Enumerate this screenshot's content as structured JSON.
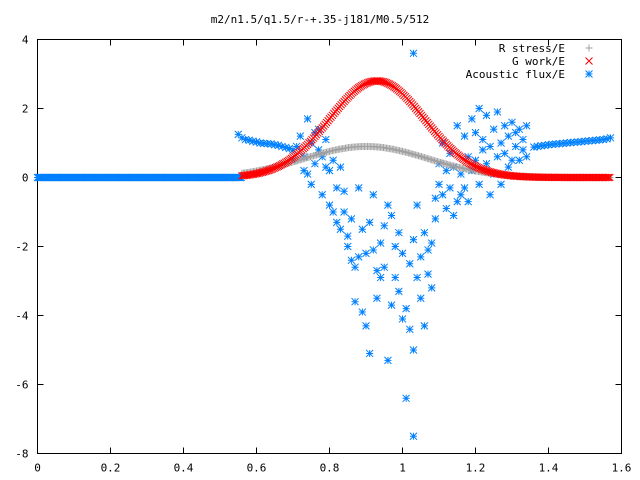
{
  "chart_data": {
    "type": "scatter",
    "title": "m2/n1.5/q1.5/r-+.35-j181/M0.5/512",
    "xlim": [
      0,
      1.6
    ],
    "ylim": [
      -8,
      4
    ],
    "xticks": [
      0,
      0.2,
      0.4,
      0.6,
      0.8,
      1,
      1.2,
      1.4,
      1.6
    ],
    "xtick_labels": [
      "0",
      "0.2",
      "0.4",
      "0.6",
      "0.8",
      "1",
      "1.2",
      "1.4",
      "1.6"
    ],
    "yticks": [
      -8,
      -6,
      -4,
      -2,
      0,
      2,
      4
    ],
    "ytick_labels": [
      "-8",
      "-6",
      "-4",
      "-2",
      "0",
      "2",
      "4"
    ],
    "grid": false,
    "legend_position": "top-right",
    "series": [
      {
        "name": "R stress/E",
        "marker": "plus",
        "color": "#a0a0a0",
        "x_range": [
          0.56,
          1.57
        ],
        "peak_x": 0.9,
        "peak_y": 0.9,
        "width": 0.17
      },
      {
        "name": "G work/E",
        "marker": "cross",
        "color": "#ff0000",
        "x_range": [
          0.56,
          1.57
        ],
        "peak_x": 0.93,
        "peak_y": 2.8,
        "width": 0.13
      },
      {
        "name": "Acoustic flux/E",
        "marker": "star",
        "color": "#0080ff",
        "flat_segment": {
          "x_range": [
            0,
            0.56
          ],
          "y": 0
        },
        "left_branch": [
          [
            0.55,
            1.25
          ],
          [
            0.56,
            1.15
          ],
          [
            0.57,
            1.1
          ],
          [
            0.58,
            1.08
          ],
          [
            0.59,
            1.05
          ],
          [
            0.6,
            1.03
          ],
          [
            0.61,
            1.0
          ],
          [
            0.62,
            0.99
          ],
          [
            0.63,
            0.98
          ],
          [
            0.64,
            0.97
          ],
          [
            0.65,
            0.95
          ],
          [
            0.66,
            0.93
          ],
          [
            0.67,
            0.9
          ],
          [
            0.68,
            0.87
          ],
          [
            0.69,
            0.84
          ],
          [
            0.7,
            0.8
          ]
        ],
        "right_branch": [
          [
            1.36,
            0.88
          ],
          [
            1.37,
            0.9
          ],
          [
            1.38,
            0.92
          ],
          [
            1.39,
            0.93
          ],
          [
            1.4,
            0.95
          ],
          [
            1.41,
            0.96
          ],
          [
            1.42,
            0.97
          ],
          [
            1.43,
            0.98
          ],
          [
            1.44,
            0.99
          ],
          [
            1.45,
            1.0
          ],
          [
            1.46,
            1.01
          ],
          [
            1.47,
            1.02
          ],
          [
            1.48,
            1.03
          ],
          [
            1.49,
            1.04
          ],
          [
            1.5,
            1.05
          ],
          [
            1.51,
            1.06
          ],
          [
            1.52,
            1.07
          ],
          [
            1.53,
            1.08
          ],
          [
            1.54,
            1.09
          ],
          [
            1.55,
            1.1
          ],
          [
            1.56,
            1.12
          ],
          [
            1.57,
            1.15
          ]
        ],
        "scatter": [
          [
            0.7,
            0.5
          ],
          [
            0.71,
            0.9
          ],
          [
            0.72,
            1.2
          ],
          [
            0.73,
            0.6
          ],
          [
            0.73,
            0.2
          ],
          [
            0.74,
            1.7
          ],
          [
            0.74,
            0.1
          ],
          [
            0.75,
            -0.2
          ],
          [
            0.75,
            1.0
          ],
          [
            0.76,
            0.4
          ],
          [
            0.76,
            1.3
          ],
          [
            0.77,
            0.8
          ],
          [
            0.77,
            1.4
          ],
          [
            0.78,
            0.6
          ],
          [
            0.78,
            -0.5
          ],
          [
            0.79,
            0.3
          ],
          [
            0.79,
            1.1
          ],
          [
            0.8,
            0.2
          ],
          [
            0.8,
            -0.8
          ],
          [
            0.81,
            -1.0
          ],
          [
            0.81,
            0.5
          ],
          [
            0.82,
            -0.3
          ],
          [
            0.82,
            -1.3
          ],
          [
            0.83,
            0.3
          ],
          [
            0.83,
            -1.5
          ],
          [
            0.84,
            -1.0
          ],
          [
            0.84,
            -0.4
          ],
          [
            0.85,
            -1.7
          ],
          [
            0.85,
            -2.0
          ],
          [
            0.86,
            -2.4
          ],
          [
            0.86,
            -1.2
          ],
          [
            0.87,
            -2.6
          ],
          [
            0.87,
            -3.6
          ],
          [
            0.88,
            -2.3
          ],
          [
            0.88,
            -0.3
          ],
          [
            0.89,
            -1.5
          ],
          [
            0.89,
            -3.9
          ],
          [
            0.9,
            -2.2
          ],
          [
            0.9,
            -4.3
          ],
          [
            0.91,
            -1.3
          ],
          [
            0.91,
            -5.1
          ],
          [
            0.92,
            -2.1
          ],
          [
            0.92,
            -0.5
          ],
          [
            0.93,
            -2.7
          ],
          [
            0.93,
            -3.5
          ],
          [
            0.94,
            -1.9
          ],
          [
            0.94,
            -2.9
          ],
          [
            0.95,
            -1.4
          ],
          [
            0.95,
            -2.6
          ],
          [
            0.96,
            -0.8
          ],
          [
            0.96,
            -5.3
          ],
          [
            0.97,
            -1.1
          ],
          [
            0.97,
            -3.7
          ],
          [
            0.98,
            -2.0
          ],
          [
            0.98,
            -2.9
          ],
          [
            0.99,
            -1.6
          ],
          [
            0.99,
            -3.3
          ],
          [
            1.0,
            -2.2
          ],
          [
            1.0,
            -4.1
          ],
          [
            1.01,
            -3.8
          ],
          [
            1.01,
            -6.4
          ],
          [
            1.02,
            -2.5
          ],
          [
            1.02,
            -4.4
          ],
          [
            1.03,
            -1.8
          ],
          [
            1.03,
            -5.0
          ],
          [
            1.03,
            3.6
          ],
          [
            1.03,
            -7.5
          ],
          [
            1.04,
            -2.9
          ],
          [
            1.04,
            -0.8
          ],
          [
            1.05,
            -2.3
          ],
          [
            1.05,
            -3.5
          ],
          [
            1.06,
            -4.3
          ],
          [
            1.06,
            -1.6
          ],
          [
            1.07,
            -2.8
          ],
          [
            1.07,
            -2.1
          ],
          [
            1.08,
            -3.2
          ],
          [
            1.08,
            -1.9
          ],
          [
            1.09,
            -0.6
          ],
          [
            1.09,
            -1.2
          ],
          [
            1.1,
            -0.2
          ],
          [
            1.1,
            0.4
          ],
          [
            1.11,
            -0.5
          ],
          [
            1.11,
            1.0
          ],
          [
            1.12,
            0.2
          ],
          [
            1.12,
            -0.9
          ],
          [
            1.13,
            -0.3
          ],
          [
            1.13,
            0.7
          ],
          [
            1.14,
            0.3
          ],
          [
            1.14,
            -1.1
          ],
          [
            1.15,
            -0.7
          ],
          [
            1.15,
            1.5
          ],
          [
            1.16,
            0.1
          ],
          [
            1.16,
            -0.5
          ],
          [
            1.17,
            -0.3
          ],
          [
            1.17,
            1.2
          ],
          [
            1.18,
            0.6
          ],
          [
            1.18,
            -0.7
          ],
          [
            1.19,
            0.2
          ],
          [
            1.19,
            1.7
          ],
          [
            1.2,
            0.5
          ],
          [
            1.2,
            1.3
          ],
          [
            1.21,
            2.0
          ],
          [
            1.21,
            -0.2
          ],
          [
            1.22,
            0.8
          ],
          [
            1.22,
            1.1
          ],
          [
            1.23,
            0.4
          ],
          [
            1.23,
            1.8
          ],
          [
            1.24,
            0.9
          ],
          [
            1.24,
            -0.5
          ],
          [
            1.25,
            1.4
          ],
          [
            1.25,
            0.1
          ],
          [
            1.26,
            0.6
          ],
          [
            1.26,
            1.9
          ],
          [
            1.27,
            -0.2
          ],
          [
            1.27,
            1.0
          ],
          [
            1.28,
            0.7
          ],
          [
            1.28,
            1.5
          ],
          [
            1.29,
            0.3
          ],
          [
            1.29,
            1.2
          ],
          [
            1.3,
            1.6
          ],
          [
            1.3,
            0.5
          ],
          [
            1.31,
            0.9
          ],
          [
            1.31,
            1.3
          ],
          [
            1.32,
            0.5
          ],
          [
            1.32,
            1.4
          ],
          [
            1.33,
            1.1
          ],
          [
            1.33,
            0.8
          ],
          [
            1.34,
            0.6
          ],
          [
            1.34,
            1.5
          ]
        ]
      }
    ]
  }
}
